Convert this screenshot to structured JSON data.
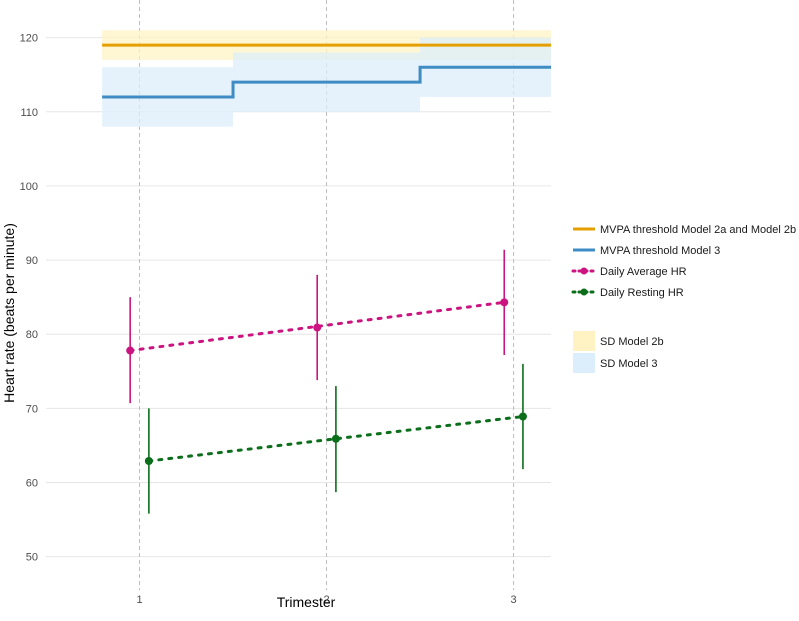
{
  "chart_data": {
    "type": "line",
    "title": "",
    "xlabel": "Trimester",
    "ylabel": "Heart rate (beats per minute)",
    "x_ticks": [
      "1",
      "2",
      "3"
    ],
    "y_ticks": [
      "50",
      "60",
      "70",
      "80",
      "90",
      "100",
      "110",
      "120"
    ],
    "xlim": [
      0.5,
      3.2
    ],
    "ylim": [
      45.5,
      124
    ],
    "threshold_series": [
      {
        "name": "MVPA threshold Model 2a and Model 2b",
        "color": "#E69F00",
        "steps": [
          {
            "x0": 0.8,
            "x1": 3.2,
            "y": 119
          }
        ]
      },
      {
        "name": "MVPA threshold Model 3",
        "color": "#3F8CC4",
        "steps": [
          {
            "x0": 0.8,
            "x1": 1.5,
            "y": 112
          },
          {
            "x0": 1.5,
            "x1": 2.5,
            "y": 114
          },
          {
            "x0": 2.5,
            "x1": 3.2,
            "y": 116
          }
        ]
      }
    ],
    "bands": [
      {
        "name": "SD Model 2b",
        "color": "#FFF3C4",
        "rects": [
          {
            "x0": 0.8,
            "x1": 1.5,
            "ymin": 117,
            "ymax": 121
          },
          {
            "x0": 1.5,
            "x1": 2.5,
            "ymin": 117,
            "ymax": 121
          },
          {
            "x0": 2.5,
            "x1": 3.2,
            "ymin": 117,
            "ymax": 121
          }
        ]
      },
      {
        "name": "SD Model 3",
        "color": "#DCEEFB",
        "rects": [
          {
            "x0": 0.8,
            "x1": 1.5,
            "ymin": 108,
            "ymax": 116
          },
          {
            "x0": 1.5,
            "x1": 2.5,
            "ymin": 110,
            "ymax": 118
          },
          {
            "x0": 2.5,
            "x1": 3.2,
            "ymin": 112,
            "ymax": 120
          }
        ]
      }
    ],
    "point_series": [
      {
        "name": "Daily Average HR",
        "color": "#CC1480",
        "points": [
          {
            "x": 0.95,
            "y": 77.8,
            "lo": 70.7,
            "hi": 85.0
          },
          {
            "x": 1.95,
            "y": 80.9,
            "lo": 73.8,
            "hi": 88.0
          },
          {
            "x": 2.95,
            "y": 84.3,
            "lo": 77.2,
            "hi": 91.4
          }
        ]
      },
      {
        "name": "Daily Resting HR",
        "color": "#0B6E1A",
        "points": [
          {
            "x": 1.05,
            "y": 62.9,
            "lo": 55.8,
            "hi": 70.0
          },
          {
            "x": 2.05,
            "y": 65.9,
            "lo": 58.7,
            "hi": 73.0
          },
          {
            "x": 3.05,
            "y": 68.9,
            "lo": 61.8,
            "hi": 76.0
          }
        ]
      }
    ],
    "legend": {
      "position": "right",
      "lines": [
        {
          "label": "MVPA threshold Model 2a and Model 2b",
          "color": "#E69F00",
          "kind": "line"
        },
        {
          "label": "MVPA threshold Model 3",
          "color": "#3F8CC4",
          "kind": "line"
        },
        {
          "label": "Daily Average HR",
          "color": "#CC1480",
          "kind": "dotted-point"
        },
        {
          "label": "Daily Resting HR",
          "color": "#0B6E1A",
          "kind": "dotted-point"
        }
      ],
      "fills": [
        {
          "label": "SD Model 2b",
          "color": "#FFF3C4"
        },
        {
          "label": "SD Model 3",
          "color": "#DCEEFB"
        }
      ]
    }
  }
}
